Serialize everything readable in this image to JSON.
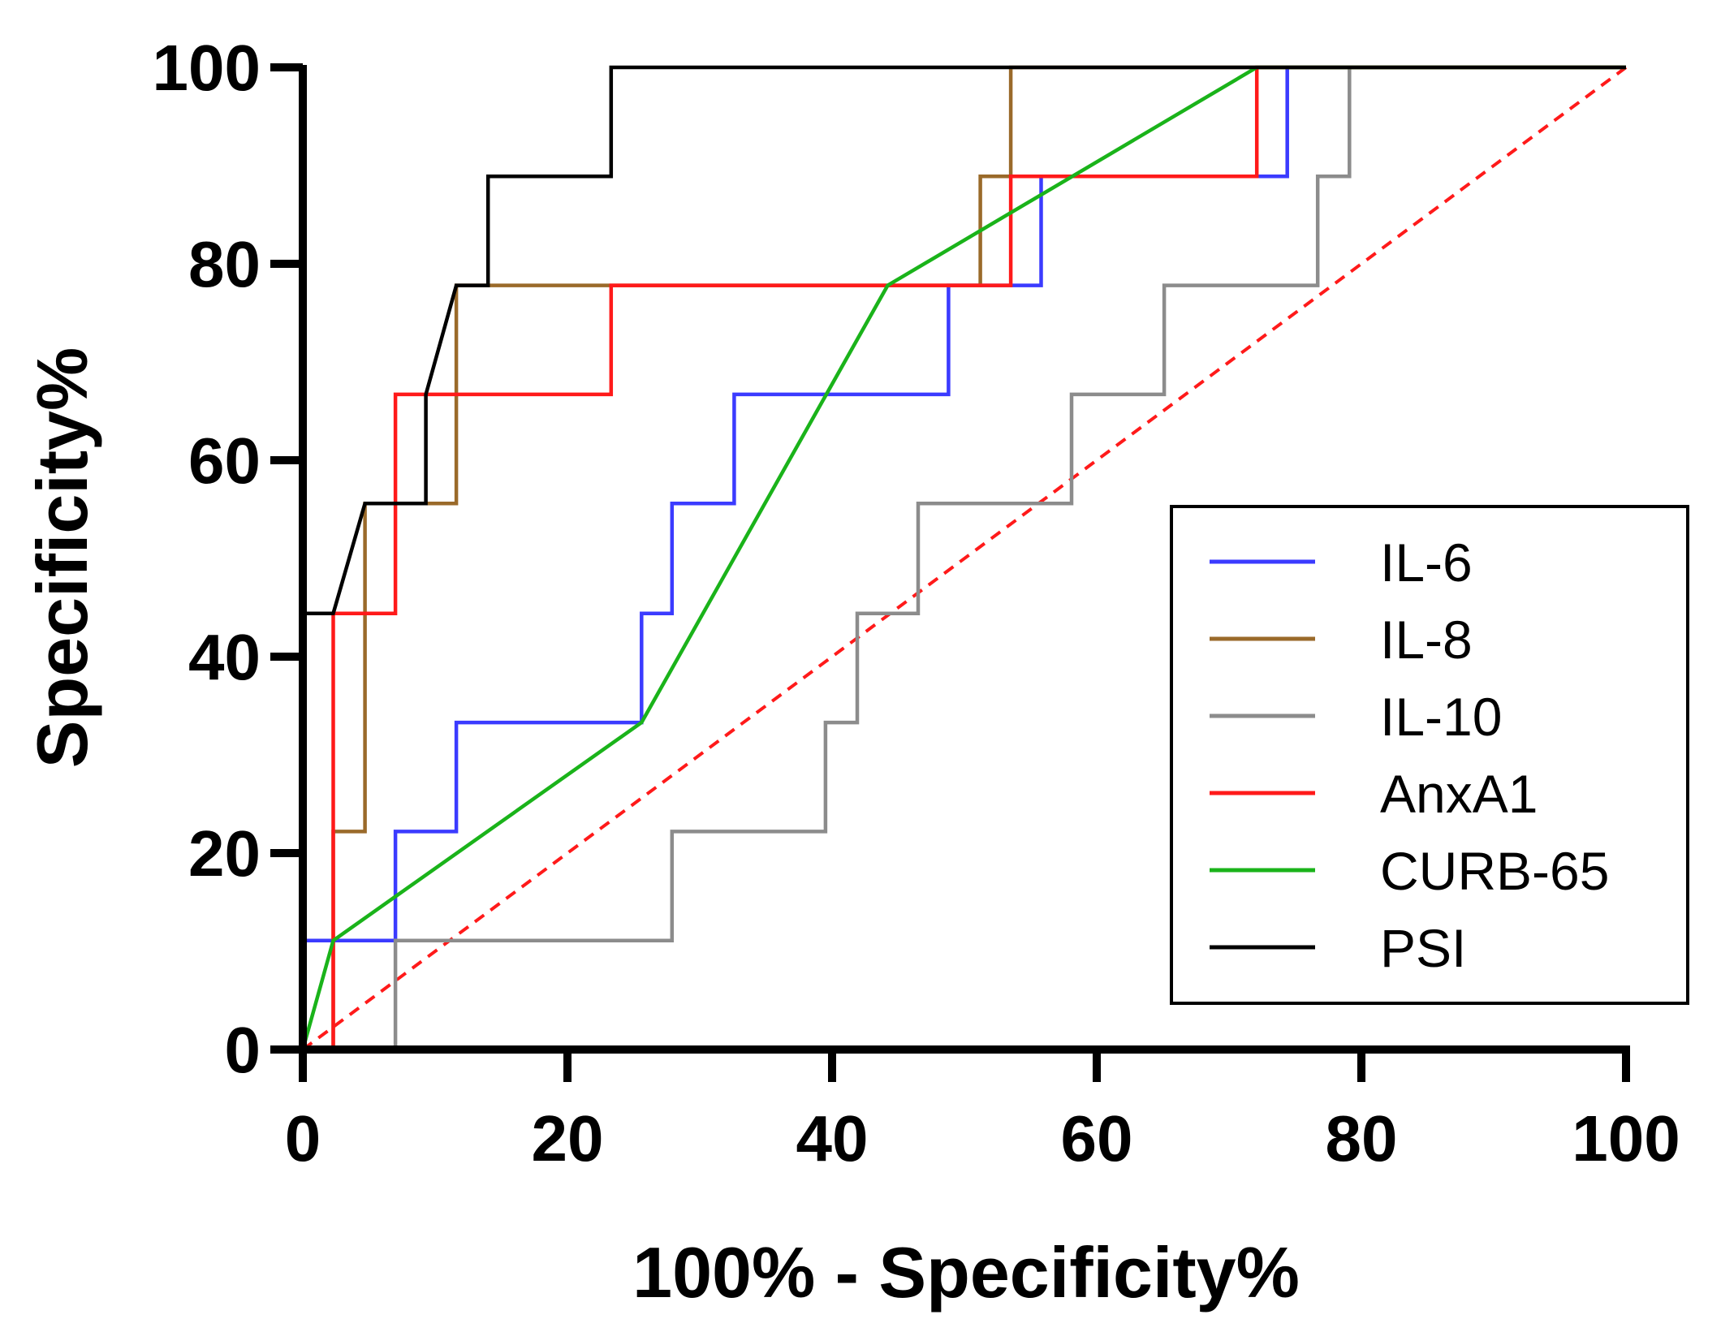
{
  "chart_data": {
    "type": "line",
    "title": "",
    "xlabel": "100% - Specificity%",
    "ylabel": "Specificity%",
    "xlim": [
      0,
      100
    ],
    "ylim": [
      0,
      100
    ],
    "xticks": [
      0,
      20,
      40,
      60,
      80,
      100
    ],
    "yticks": [
      0,
      20,
      40,
      60,
      80,
      100
    ],
    "grid": false,
    "legend_position": "bottom-right",
    "series": [
      {
        "name": "IL-6",
        "color": "#3b3bff",
        "x": [
          0,
          0,
          7,
          7,
          11.6,
          11.6,
          25.6,
          25.6,
          27.9,
          27.9,
          32.6,
          32.6,
          48.8,
          48.8,
          55.8,
          55.8,
          74.4,
          74.4,
          100
        ],
        "y": [
          0,
          11.1,
          11.1,
          22.2,
          22.2,
          33.3,
          33.3,
          44.4,
          44.4,
          55.6,
          55.6,
          66.7,
          66.7,
          77.8,
          77.8,
          88.9,
          88.9,
          100,
          100
        ]
      },
      {
        "name": "IL-8",
        "color": "#9a6a2a",
        "x": [
          0,
          2.3,
          2.3,
          4.7,
          4.7,
          11.6,
          11.6,
          51.2,
          51.2,
          53.5,
          53.5,
          100
        ],
        "y": [
          0,
          0,
          22.2,
          22.2,
          55.6,
          55.6,
          77.8,
          77.8,
          88.9,
          88.9,
          100,
          100
        ]
      },
      {
        "name": "IL-10",
        "color": "#8c8c8c",
        "x": [
          0,
          7,
          7,
          27.9,
          27.9,
          39.5,
          39.5,
          41.9,
          41.9,
          46.5,
          46.5,
          58.1,
          58.1,
          65.1,
          65.1,
          76.7,
          76.7,
          79.1,
          79.1,
          100
        ],
        "y": [
          0,
          0,
          11.1,
          11.1,
          22.2,
          22.2,
          33.3,
          33.3,
          44.4,
          44.4,
          55.6,
          55.6,
          66.7,
          66.7,
          77.8,
          77.8,
          88.9,
          88.9,
          100,
          100
        ]
      },
      {
        "name": "AnxA1",
        "color": "#ff1a1a",
        "x": [
          2.3,
          2.3,
          7,
          7,
          23.3,
          23.3,
          53.5,
          53.5,
          72.1,
          72.1,
          100
        ],
        "y": [
          0,
          44.4,
          44.4,
          66.7,
          66.7,
          77.8,
          77.8,
          88.9,
          88.9,
          100,
          100
        ]
      },
      {
        "name": "CURB-65",
        "color": "#1ab31a",
        "x": [
          0,
          2.3,
          25.6,
          44.2,
          72.1,
          100
        ],
        "y": [
          0,
          11.1,
          33.3,
          77.8,
          100,
          100
        ]
      },
      {
        "name": "PSI",
        "color": "#000000",
        "x": [
          0,
          0,
          2.3,
          4.7,
          9.3,
          9.3,
          11.6,
          14,
          14,
          23.3,
          23.3,
          100
        ],
        "y": [
          0,
          44.4,
          44.4,
          55.6,
          55.6,
          66.7,
          77.8,
          77.8,
          88.9,
          88.9,
          100,
          100
        ]
      }
    ],
    "reference_line": {
      "name": "reference",
      "color": "#ff1a1a",
      "style": "dashed",
      "x": [
        0,
        100
      ],
      "y": [
        0,
        100
      ]
    }
  }
}
